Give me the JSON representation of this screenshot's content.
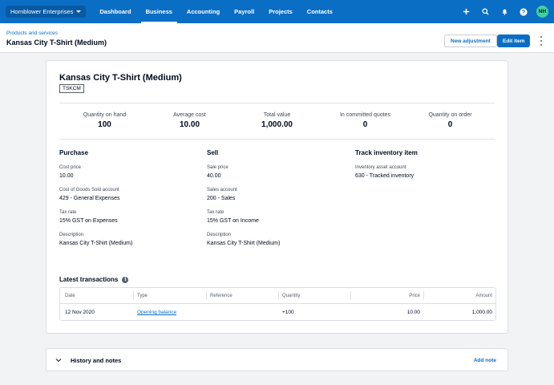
{
  "nav": {
    "org": "Hornblower Enterprises",
    "items": [
      {
        "label": "Dashboard"
      },
      {
        "label": "Business"
      },
      {
        "label": "Accounting"
      },
      {
        "label": "Payroll"
      },
      {
        "label": "Projects"
      },
      {
        "label": "Contacts"
      }
    ],
    "active": "Business",
    "icons": [
      "plus-icon",
      "search-icon",
      "bell-icon",
      "help-icon"
    ],
    "avatar": "NH"
  },
  "header": {
    "breadcrumb": "Products and services",
    "title": "Kansas City T-Shirt (Medium)",
    "new_adjustment": "New adjustment",
    "edit_item": "Edit item"
  },
  "item": {
    "name": "Kansas City T-Shirt (Medium)",
    "code": "TSKCM",
    "stats": [
      {
        "label": "Quantity on hand",
        "value": "100"
      },
      {
        "label": "Average cost",
        "value": "10.00"
      },
      {
        "label": "Total value",
        "value": "1,000.00"
      },
      {
        "label": "In committed quotes",
        "value": "0"
      },
      {
        "label": "Quantity on order",
        "value": "0"
      }
    ],
    "purchase": {
      "heading": "Purchase",
      "fields": [
        {
          "label": "Cost price",
          "value": "10.00"
        },
        {
          "label": "Cost of Goods Sold account",
          "value": "429 - General Expenses"
        },
        {
          "label": "Tax rate",
          "value": "15% GST on Expenses"
        },
        {
          "label": "Description",
          "value": "Kansas City T-Shirt (Medium)"
        }
      ]
    },
    "sell": {
      "heading": "Sell",
      "fields": [
        {
          "label": "Sale price",
          "value": "40.00"
        },
        {
          "label": "Sales account",
          "value": "200 - Sales"
        },
        {
          "label": "Tax rate",
          "value": "15% GST on Income"
        },
        {
          "label": "Description",
          "value": "Kansas City T-Shirt (Medium)"
        }
      ]
    },
    "track": {
      "heading": "Track inventory item",
      "fields": [
        {
          "label": "Inventory asset account",
          "value": "630 - Tracked inventory"
        }
      ]
    }
  },
  "transactions": {
    "title": "Latest transactions",
    "columns": [
      "Date",
      "Type",
      "Reference",
      "Quantity",
      "Price",
      "Amount"
    ],
    "rows": [
      {
        "date": "12 Nov 2020",
        "type": "Opening balance",
        "reference": "",
        "quantity": "+100",
        "price": "10.00",
        "amount": "1,000.00"
      }
    ]
  },
  "history": {
    "title": "History and notes",
    "add_note": "Add note"
  },
  "colors": {
    "brand": "#0b6ec5",
    "avatar": "#3fd29d"
  }
}
